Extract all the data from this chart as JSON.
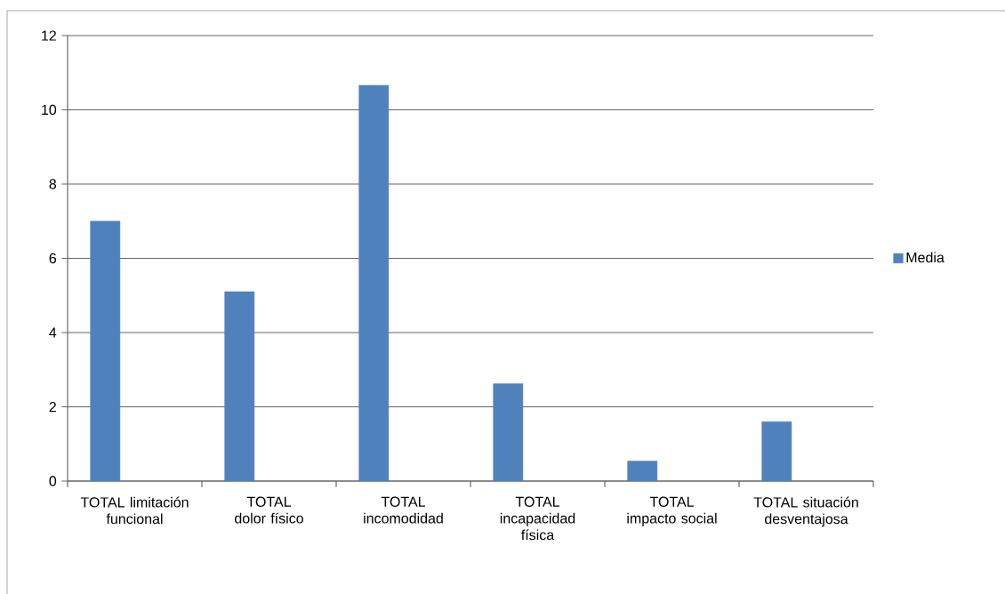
{
  "chart_data": {
    "type": "bar",
    "categories": [
      "TOTAL limitación funcional",
      "TOTAL dolor físico",
      "TOTAL incomodidad",
      "TOTAL incapacidad física",
      "TOTAL impacto social",
      "TOTAL situación desventajosa"
    ],
    "series": [
      {
        "name": "Media",
        "color": "#4f81bd",
        "values": [
          7.0,
          5.1,
          10.66,
          2.62,
          0.54,
          1.6
        ]
      }
    ],
    "ylim": [
      0,
      12
    ],
    "yticks": [
      0,
      2,
      4,
      6,
      8,
      10,
      12
    ],
    "grid": "y",
    "legend": "right"
  }
}
